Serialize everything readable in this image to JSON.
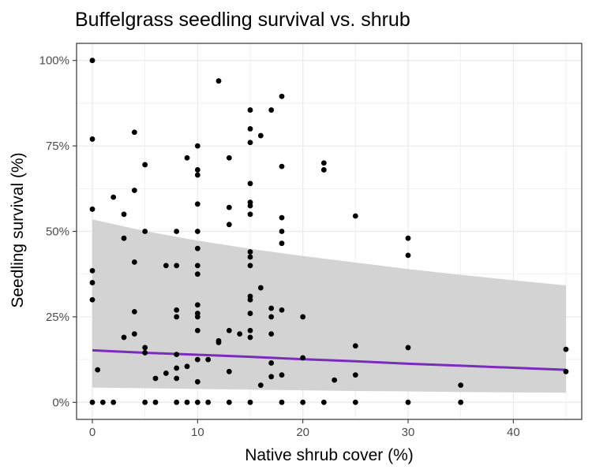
{
  "chart_data": {
    "type": "scatter",
    "title": "Buffelgrass seedling survival vs. shrub",
    "xlabel": "Native shrub cover (%)",
    "ylabel": "Seedling survival (%)",
    "xlim": [
      -1.5,
      46.5
    ],
    "ylim": [
      -5,
      105
    ],
    "x_ticks": [
      0,
      10,
      20,
      30,
      40
    ],
    "x_tick_labels": [
      "0",
      "10",
      "20",
      "30",
      "40"
    ],
    "y_ticks": [
      0,
      25,
      50,
      75,
      100
    ],
    "y_tick_labels": [
      "0%",
      "25%",
      "50%",
      "75%",
      "100%"
    ],
    "grid": true,
    "colors": {
      "points": "#000000",
      "fit_line": "#7B2CBF",
      "ribbon": "#d3d3d3",
      "grid": "#ebebeb",
      "panel_border": "#333333"
    },
    "points": [
      {
        "x": 0,
        "y": 100
      },
      {
        "x": 0,
        "y": 77
      },
      {
        "x": 0,
        "y": 56.5
      },
      {
        "x": 0,
        "y": 38.5
      },
      {
        "x": 0,
        "y": 35
      },
      {
        "x": 0,
        "y": 30
      },
      {
        "x": 0,
        "y": 0
      },
      {
        "x": 0.5,
        "y": 9.5
      },
      {
        "x": 1,
        "y": 0
      },
      {
        "x": 2,
        "y": 60
      },
      {
        "x": 2,
        "y": 0
      },
      {
        "x": 3,
        "y": 55
      },
      {
        "x": 3,
        "y": 48
      },
      {
        "x": 3,
        "y": 19
      },
      {
        "x": 4,
        "y": 79
      },
      {
        "x": 4,
        "y": 62
      },
      {
        "x": 4,
        "y": 41
      },
      {
        "x": 4,
        "y": 26.5
      },
      {
        "x": 4,
        "y": 20
      },
      {
        "x": 5,
        "y": 69.5
      },
      {
        "x": 5,
        "y": 50
      },
      {
        "x": 5,
        "y": 16
      },
      {
        "x": 5,
        "y": 14.5
      },
      {
        "x": 5,
        "y": 0
      },
      {
        "x": 6,
        "y": 7
      },
      {
        "x": 6,
        "y": 0
      },
      {
        "x": 7,
        "y": 40
      },
      {
        "x": 7,
        "y": 8.5
      },
      {
        "x": 8,
        "y": 50
      },
      {
        "x": 8,
        "y": 40
      },
      {
        "x": 8,
        "y": 27
      },
      {
        "x": 8,
        "y": 25
      },
      {
        "x": 8,
        "y": 14
      },
      {
        "x": 8,
        "y": 10
      },
      {
        "x": 8,
        "y": 7
      },
      {
        "x": 8,
        "y": 0
      },
      {
        "x": 9,
        "y": 71.5
      },
      {
        "x": 9,
        "y": 10.5
      },
      {
        "x": 9,
        "y": 0
      },
      {
        "x": 10,
        "y": 75
      },
      {
        "x": 10,
        "y": 68
      },
      {
        "x": 10,
        "y": 66.5
      },
      {
        "x": 10,
        "y": 58
      },
      {
        "x": 10,
        "y": 50
      },
      {
        "x": 10,
        "y": 45
      },
      {
        "x": 10,
        "y": 40
      },
      {
        "x": 10,
        "y": 37.5
      },
      {
        "x": 10,
        "y": 28.5
      },
      {
        "x": 10,
        "y": 26
      },
      {
        "x": 10,
        "y": 25
      },
      {
        "x": 10,
        "y": 21
      },
      {
        "x": 10,
        "y": 12.5
      },
      {
        "x": 10,
        "y": 6
      },
      {
        "x": 10,
        "y": 0
      },
      {
        "x": 11,
        "y": 12.5
      },
      {
        "x": 11,
        "y": 0
      },
      {
        "x": 12,
        "y": 94
      },
      {
        "x": 12,
        "y": 18
      },
      {
        "x": 12,
        "y": 17.5
      },
      {
        "x": 13,
        "y": 71.5
      },
      {
        "x": 13,
        "y": 57
      },
      {
        "x": 13,
        "y": 52
      },
      {
        "x": 13,
        "y": 21
      },
      {
        "x": 13,
        "y": 9
      },
      {
        "x": 13,
        "y": 0
      },
      {
        "x": 14,
        "y": 20
      },
      {
        "x": 15,
        "y": 85.5
      },
      {
        "x": 15,
        "y": 80
      },
      {
        "x": 15,
        "y": 76
      },
      {
        "x": 15,
        "y": 64
      },
      {
        "x": 15,
        "y": 58.5
      },
      {
        "x": 15,
        "y": 57.5
      },
      {
        "x": 15,
        "y": 55
      },
      {
        "x": 15,
        "y": 44
      },
      {
        "x": 15,
        "y": 42.5
      },
      {
        "x": 15,
        "y": 40
      },
      {
        "x": 15,
        "y": 31
      },
      {
        "x": 15,
        "y": 30
      },
      {
        "x": 15,
        "y": 26
      },
      {
        "x": 15,
        "y": 21
      },
      {
        "x": 15,
        "y": 19
      },
      {
        "x": 15,
        "y": 0
      },
      {
        "x": 16,
        "y": 78
      },
      {
        "x": 16,
        "y": 33.5
      },
      {
        "x": 16,
        "y": 5
      },
      {
        "x": 17,
        "y": 85.5
      },
      {
        "x": 17,
        "y": 27.5
      },
      {
        "x": 17,
        "y": 25
      },
      {
        "x": 17,
        "y": 20
      },
      {
        "x": 17,
        "y": 11.5
      },
      {
        "x": 17,
        "y": 7.5
      },
      {
        "x": 18,
        "y": 89.5
      },
      {
        "x": 18,
        "y": 69
      },
      {
        "x": 18,
        "y": 54
      },
      {
        "x": 18,
        "y": 50
      },
      {
        "x": 18,
        "y": 46.5
      },
      {
        "x": 18,
        "y": 27
      },
      {
        "x": 18,
        "y": 8
      },
      {
        "x": 18,
        "y": 0
      },
      {
        "x": 20,
        "y": 25
      },
      {
        "x": 20,
        "y": 13
      },
      {
        "x": 20,
        "y": 0
      },
      {
        "x": 22,
        "y": 70
      },
      {
        "x": 22,
        "y": 68
      },
      {
        "x": 22,
        "y": 0
      },
      {
        "x": 23,
        "y": 6.5
      },
      {
        "x": 25,
        "y": 54.5
      },
      {
        "x": 25,
        "y": 16.5
      },
      {
        "x": 25,
        "y": 8
      },
      {
        "x": 25,
        "y": 0
      },
      {
        "x": 30,
        "y": 48
      },
      {
        "x": 30,
        "y": 43
      },
      {
        "x": 30,
        "y": 16
      },
      {
        "x": 30,
        "y": 0
      },
      {
        "x": 35,
        "y": 5
      },
      {
        "x": 35,
        "y": 0
      },
      {
        "x": 45,
        "y": 15.5
      },
      {
        "x": 45,
        "y": 9
      }
    ],
    "fit": {
      "x": [
        0,
        5,
        10,
        15,
        20,
        25,
        30,
        35,
        40,
        45
      ],
      "y": [
        15.2,
        14.5,
        13.9,
        13.3,
        12.6,
        12.0,
        11.3,
        10.7,
        10.1,
        9.5
      ],
      "ribbon_upper": [
        53.5,
        50.1,
        47.3,
        44.9,
        42.8,
        40.9,
        39.0,
        37.3,
        35.7,
        34.2
      ],
      "ribbon_lower": [
        4.3,
        4.1,
        3.9,
        3.7,
        3.5,
        3.3,
        3.2,
        3.0,
        2.9,
        2.8
      ]
    }
  }
}
